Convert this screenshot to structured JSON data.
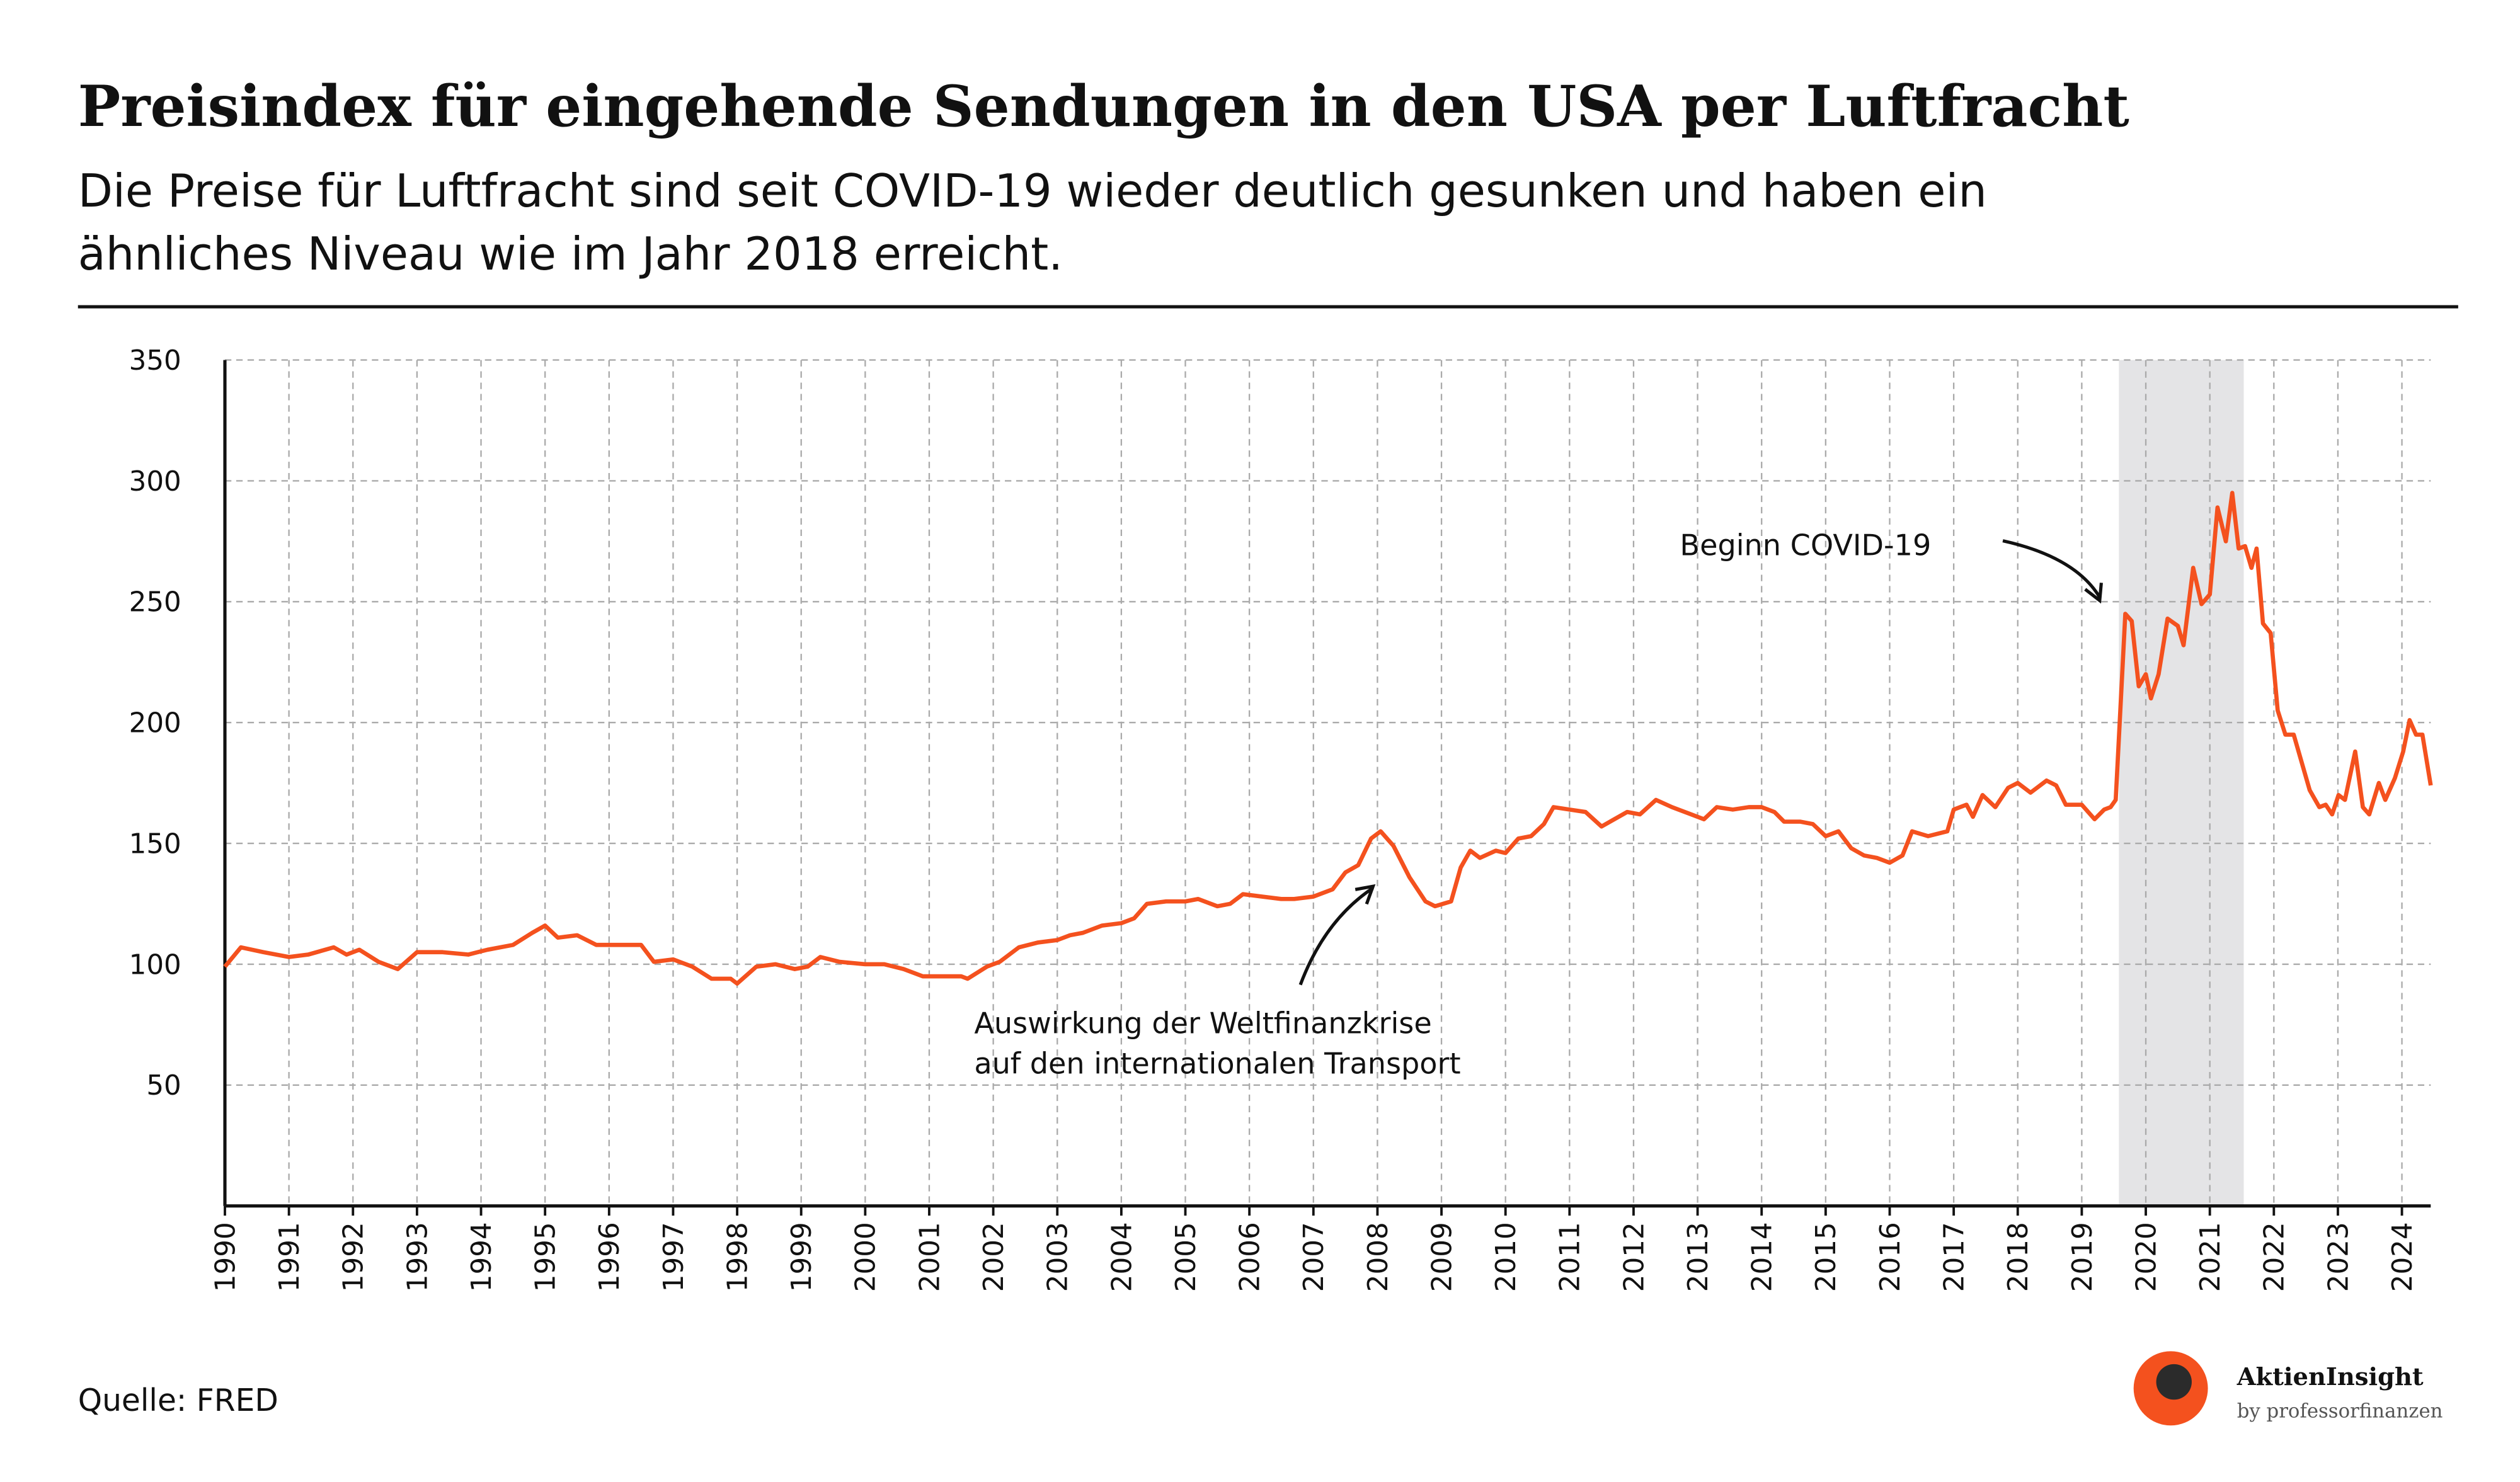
{
  "chart_data": {
    "type": "line",
    "title": "Preisindex für eingehende Sendungen in den USA per Luftfracht",
    "subtitle": [
      "Die Preise für Luftfracht sind seit COVID-19 wieder deutlich gesunken und haben ein",
      "ähnliches Niveau wie im Jahr 2018 erreicht."
    ],
    "color": "#f4511e",
    "grid": true,
    "shade": [
      2019.58,
      2021.53
    ],
    "annotation_covid": "Beginn COVID-19",
    "annotation_crisis": [
      "Auswirkung der Weltfinanzkrise",
      "auf den internationalen Transport"
    ],
    "source": "Quelle: FRED",
    "brand": {
      "name": "AktienInsight",
      "tagline": "by professorfinanzen"
    },
    "xlim": [
      1990,
      2024.45
    ],
    "xticks": [
      1990,
      1991,
      1992,
      1993,
      1994,
      1995,
      1996,
      1997,
      1998,
      1999,
      2000,
      2001,
      2002,
      2003,
      2004,
      2005,
      2006,
      2007,
      2008,
      2009,
      2010,
      2011,
      2012,
      2013,
      2014,
      2015,
      2016,
      2017,
      2018,
      2019,
      2020,
      2021,
      2022,
      2023,
      2024
    ],
    "ylim": [
      0,
      350
    ],
    "yticks": [
      50,
      100,
      150,
      200,
      250,
      300,
      350
    ],
    "x": [
      1990.0,
      1990.25,
      1990.6,
      1991.0,
      1991.3,
      1991.7,
      1991.9,
      1992.1,
      1992.4,
      1992.7,
      1993.0,
      1993.4,
      1993.8,
      1994.1,
      1994.5,
      1994.8,
      1995.0,
      1995.2,
      1995.5,
      1995.8,
      1996.2,
      1996.5,
      1996.7,
      1997.0,
      1997.3,
      1997.6,
      1997.9,
      1998.0,
      1998.3,
      1998.6,
      1998.9,
      1999.1,
      1999.3,
      1999.6,
      2000.0,
      2000.3,
      2000.6,
      2000.9,
      2001.2,
      2001.5,
      2001.6,
      2001.9,
      2002.1,
      2002.4,
      2002.7,
      2003.0,
      2003.2,
      2003.4,
      2003.7,
      2004.0,
      2004.2,
      2004.4,
      2004.7,
      2005.0,
      2005.2,
      2005.5,
      2005.7,
      2005.9,
      2006.2,
      2006.5,
      2006.7,
      2007.0,
      2007.3,
      2007.5,
      2007.7,
      2007.9,
      2008.05,
      2008.25,
      2008.5,
      2008.75,
      2008.9,
      2009.15,
      2009.3,
      2009.45,
      2009.6,
      2009.85,
      2010.0,
      2010.2,
      2010.4,
      2010.6,
      2010.75,
      2011.0,
      2011.25,
      2011.5,
      2011.7,
      2011.9,
      2012.1,
      2012.35,
      2012.6,
      2012.9,
      2013.1,
      2013.3,
      2013.55,
      2013.8,
      2014.0,
      2014.2,
      2014.35,
      2014.6,
      2014.8,
      2015.0,
      2015.2,
      2015.4,
      2015.6,
      2015.8,
      2016.0,
      2016.2,
      2016.35,
      2016.6,
      2016.9,
      2017.0,
      2017.2,
      2017.3,
      2017.45,
      2017.65,
      2017.85,
      2018.0,
      2018.2,
      2018.45,
      2018.6,
      2018.75,
      2019.0,
      2019.2,
      2019.35,
      2019.45,
      2019.53,
      2019.68,
      2019.78,
      2019.89,
      2020.0,
      2020.08,
      2020.2,
      2020.34,
      2020.5,
      2020.59,
      2020.74,
      2020.87,
      2021.0,
      2021.12,
      2021.25,
      2021.35,
      2021.45,
      2021.55,
      2021.65,
      2021.73,
      2021.83,
      2021.95,
      2022.06,
      2022.18,
      2022.31,
      2022.56,
      2022.71,
      2022.81,
      2022.91,
      2023.01,
      2023.11,
      2023.27,
      2023.39,
      2023.49,
      2023.64,
      2023.74,
      2023.89,
      2024.02,
      2024.12,
      2024.22,
      2024.32,
      2024.45
    ],
    "values": [
      99,
      107,
      105,
      103,
      104,
      107,
      104,
      106,
      101,
      98,
      105,
      105,
      104,
      106,
      108,
      113,
      116,
      111,
      112,
      108,
      108,
      108,
      101,
      102,
      99,
      94,
      94,
      92,
      99,
      100,
      98,
      99,
      103,
      101,
      100,
      100,
      98,
      95,
      95,
      95,
      94,
      99,
      101,
      107,
      109,
      110,
      112,
      113,
      116,
      117,
      119,
      125,
      126,
      126,
      127,
      124,
      125,
      129,
      128,
      127,
      127,
      128,
      131,
      138,
      141,
      152,
      155,
      149,
      136,
      126,
      124,
      126,
      140,
      147,
      144,
      147,
      146,
      152,
      153,
      158,
      165,
      164,
      163,
      157,
      160,
      163,
      162,
      168,
      165,
      162,
      160,
      165,
      164,
      165,
      165,
      163,
      159,
      159,
      158,
      153,
      155,
      148,
      145,
      144,
      142,
      145,
      155,
      153,
      155,
      164,
      166,
      161,
      170,
      165,
      173,
      175,
      171,
      176,
      174,
      166,
      166,
      160,
      164,
      165,
      168,
      245,
      242,
      215,
      220,
      210,
      220,
      243,
      240,
      232,
      264,
      249,
      253,
      289,
      275,
      295,
      272,
      273,
      264,
      272,
      241,
      237,
      205,
      195,
      195,
      172,
      165,
      166,
      162,
      170,
      168,
      188,
      165,
      162,
      175,
      168,
      177,
      188,
      201,
      195,
      195,
      174
    ]
  }
}
